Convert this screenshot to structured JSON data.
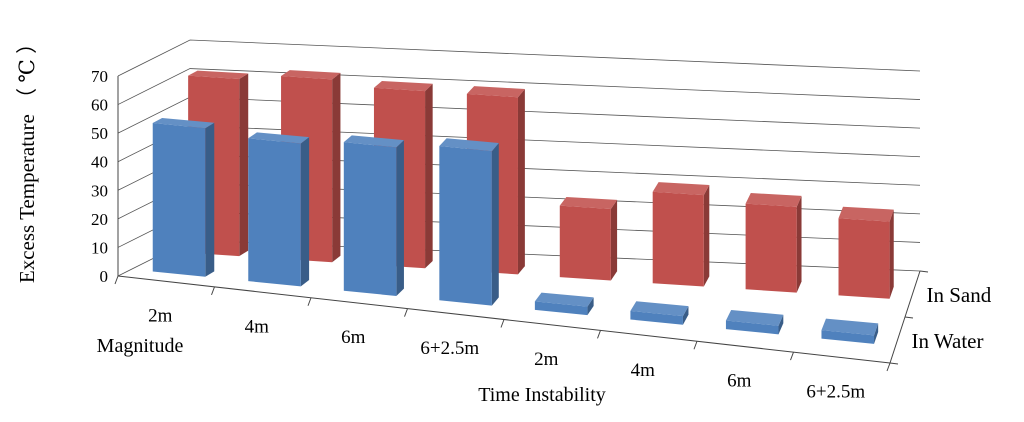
{
  "chart_data": {
    "type": "bar",
    "title": "",
    "ylabel": "Excess Temperature （ ℃ ）",
    "ylim": [
      0,
      70
    ],
    "yticks": [
      0,
      10,
      20,
      30,
      40,
      50,
      60,
      70
    ],
    "grid": true,
    "groups": [
      "Magnitude",
      "Time  Instability"
    ],
    "categories": [
      "2m",
      "4m",
      "6m",
      "6+2.5m",
      "2m",
      "4m",
      "6m",
      "6+2.5m"
    ],
    "category_groups": [
      0,
      0,
      0,
      0,
      1,
      1,
      1,
      1
    ],
    "series": [
      {
        "name": "In Water",
        "color": "#4F81BD",
        "values": [
          52,
          50,
          52,
          54,
          3,
          3,
          3,
          3
        ]
      },
      {
        "name": "In Sand",
        "color": "#C0504D",
        "values": [
          62,
          64,
          62,
          62,
          25,
          32,
          30,
          27
        ]
      }
    ]
  }
}
